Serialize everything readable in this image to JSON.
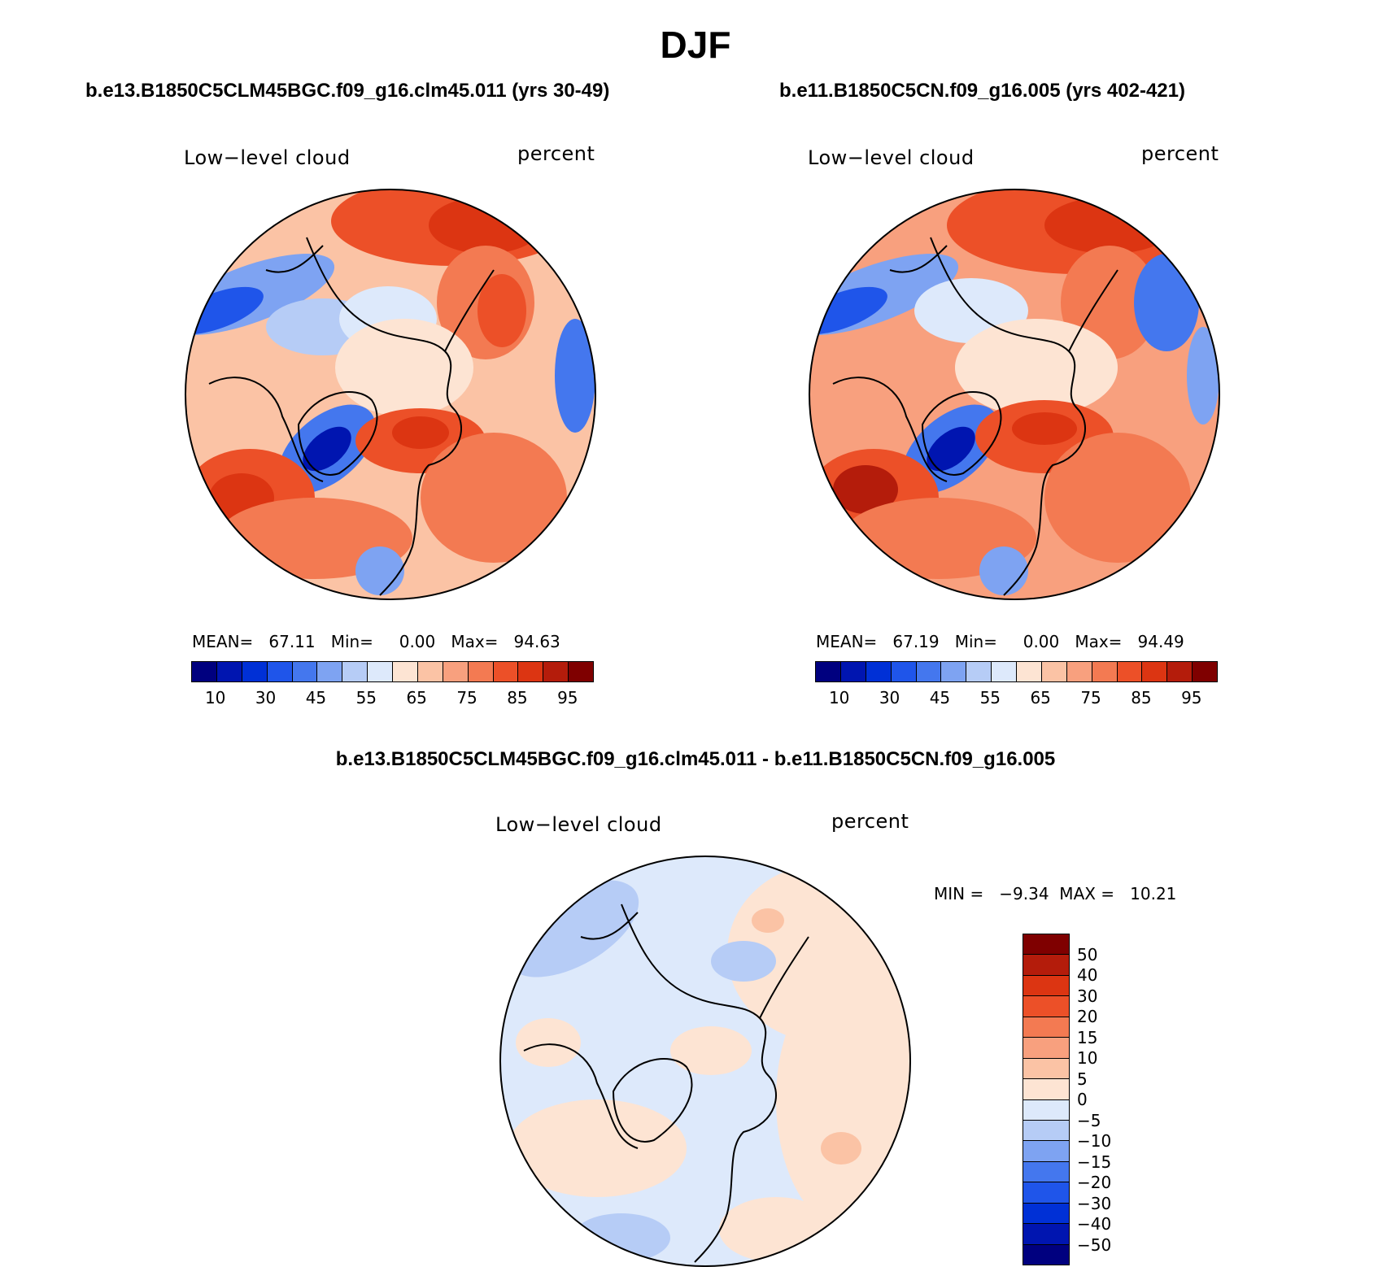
{
  "figure": {
    "title": "DJF"
  },
  "panels": [
    {
      "case_title": "b.e13.B1850C5CLM45BGC.f09_g16.clm45.011 (yrs 30-49)",
      "variable_label": "Low−level cloud",
      "units_label": "percent",
      "stats_text": "MEAN=   67.11   Min=     0.00   Max=   94.63",
      "mean": 67.11,
      "min": 0.0,
      "max": 94.63
    },
    {
      "case_title": "b.e11.B1850C5CN.f09_g16.005 (yrs 402-421)",
      "variable_label": "Low−level cloud",
      "units_label": "percent",
      "stats_text": "MEAN=   67.19   Min=     0.00   Max=   94.49",
      "mean": 67.19,
      "min": 0.0,
      "max": 94.49
    }
  ],
  "difference": {
    "title": "b.e13.B1850C5CLM45BGC.f09_g16.clm45.011 - b.e11.B1850C5CN.f09_g16.005",
    "variable_label": "Low−level cloud",
    "units_label": "percent",
    "stats_text": "MIN =   −9.34  MAX =   10.21",
    "min": -9.34,
    "max": 10.21
  },
  "colorbar_main": {
    "colors": [
      "#00007f",
      "#0015b0",
      "#0030d6",
      "#1f55ea",
      "#4477ee",
      "#7ea3f2",
      "#b6ccf6",
      "#dde9fb",
      "#fde4d3",
      "#fbc3a5",
      "#f8a07e",
      "#f37a52",
      "#ec5028",
      "#dc3512",
      "#b41c0b",
      "#7f0000"
    ],
    "tick_labels": [
      "10",
      "30",
      "45",
      "55",
      "65",
      "75",
      "85",
      "95"
    ]
  },
  "colorbar_diff": {
    "colors": [
      "#7f0000",
      "#b41c0b",
      "#dc3512",
      "#ec5028",
      "#f37a52",
      "#f8a07e",
      "#fbc3a5",
      "#fde4d3",
      "#dde9fb",
      "#b6ccf6",
      "#7ea3f2",
      "#4477ee",
      "#1f55ea",
      "#0030d6",
      "#0015b0",
      "#00007f"
    ],
    "tick_labels": [
      "50",
      "40",
      "30",
      "20",
      "15",
      "10",
      "5",
      "0",
      "−5",
      "−10",
      "−15",
      "−20",
      "−30",
      "−40",
      "−50"
    ]
  }
}
